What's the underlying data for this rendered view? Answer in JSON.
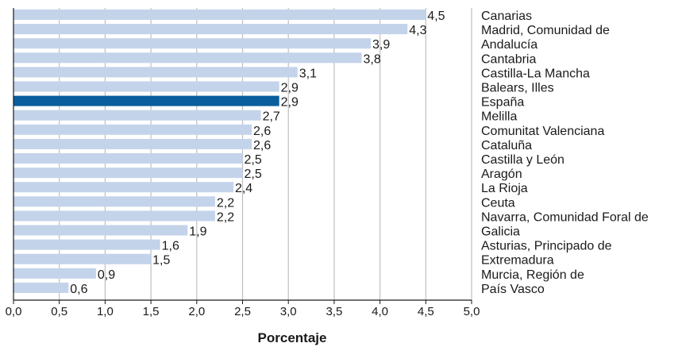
{
  "chart_data": {
    "type": "bar",
    "orientation": "horizontal",
    "title": "",
    "xlabel": "Porcentaje",
    "ylabel": "",
    "xlim": [
      0,
      5
    ],
    "xticks": [
      "0,0",
      "0,5",
      "1,0",
      "1,5",
      "2,0",
      "2,5",
      "3,0",
      "3,5",
      "4,0",
      "4,5",
      "5,0"
    ],
    "grid": "vertical",
    "categories": [
      "Canarias",
      "Madrid, Comunidad de",
      "Andalucía",
      "Cantabria",
      "Castilla-La Mancha",
      "Balears, Illes",
      "España",
      "Melilla",
      "Comunitat Valenciana",
      "Cataluña",
      "Castilla y León",
      "Aragón",
      "La Rioja",
      "Ceuta",
      "Navarra, Comunidad Foral de",
      "Galicia",
      "Asturias, Principado de",
      "Extremadura",
      "Murcia, Región de",
      "País Vasco"
    ],
    "values": [
      4.5,
      4.3,
      3.9,
      3.8,
      3.1,
      2.9,
      2.9,
      2.7,
      2.6,
      2.6,
      2.5,
      2.5,
      2.4,
      2.2,
      2.2,
      1.9,
      1.6,
      1.5,
      0.9,
      0.6
    ],
    "value_labels": [
      "4,5",
      "4,3",
      "3,9",
      "3,8",
      "3,1",
      "2,9",
      "2,9",
      "2,7",
      "2,6",
      "2,6",
      "2,5",
      "2,5",
      "2,4",
      "2,2",
      "2,2",
      "1,9",
      "1,6",
      "1,5",
      "0,9",
      "0,6"
    ],
    "highlight": "España",
    "colors": {
      "bar": "#c3d3ea",
      "highlight": "#0a5d9c",
      "grid": "#bfbfbf",
      "axis": "#1a1a1a"
    }
  }
}
